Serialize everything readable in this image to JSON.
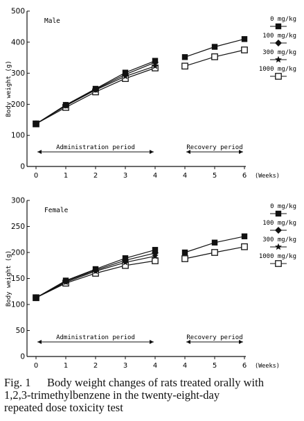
{
  "chart_data": [
    {
      "type": "line",
      "title": "Male",
      "ylabel": "Body weight (g)",
      "xlabel": "(Weeks)",
      "ylim": [
        0,
        500
      ],
      "yticks": [
        0,
        100,
        200,
        300,
        400,
        500
      ],
      "admin_x": [
        0,
        1,
        2,
        3,
        4
      ],
      "recovery_x": [
        4,
        5,
        6
      ],
      "xtick_labels_admin": [
        "0",
        "1",
        "2",
        "3",
        "4"
      ],
      "xtick_labels_recovery": [
        "4",
        "5",
        "6"
      ],
      "periods": {
        "administration": "Administration period",
        "recovery": "Recovery period"
      },
      "legend_position": "right",
      "series": [
        {
          "name": "0 mg/kg",
          "marker": "square-filled",
          "admin": [
            137,
            198,
            250,
            302,
            340
          ],
          "recovery": [
            352,
            385,
            410
          ]
        },
        {
          "name": "100 mg/kg",
          "marker": "diamond-filled",
          "admin": [
            137,
            197,
            248,
            296,
            335
          ],
          "recovery": []
        },
        {
          "name": "300 mg/kg",
          "marker": "star-filled",
          "admin": [
            137,
            195,
            246,
            290,
            323
          ],
          "recovery": []
        },
        {
          "name": "1000 mg/kg",
          "marker": "square-open",
          "admin": [
            137,
            190,
            240,
            283,
            317
          ],
          "recovery": [
            323,
            353,
            375
          ]
        }
      ]
    },
    {
      "type": "line",
      "title": "Female",
      "ylabel": "Body weight (g)",
      "xlabel": "(Weeks)",
      "ylim": [
        0,
        300
      ],
      "yticks": [
        0,
        50,
        100,
        150,
        200,
        250,
        300
      ],
      "admin_x": [
        0,
        1,
        2,
        3,
        4
      ],
      "recovery_x": [
        4,
        5,
        6
      ],
      "xtick_labels_admin": [
        "0",
        "1",
        "2",
        "3",
        "4"
      ],
      "xtick_labels_recovery": [
        "4",
        "5",
        "6"
      ],
      "periods": {
        "administration": "Administration period",
        "recovery": "Recovery period"
      },
      "legend_position": "right",
      "series": [
        {
          "name": "0 mg/kg",
          "marker": "square-filled",
          "admin": [
            113,
            146,
            168,
            189,
            205
          ],
          "recovery": [
            200,
            219,
            231
          ]
        },
        {
          "name": "100 mg/kg",
          "marker": "diamond-filled",
          "admin": [
            113,
            145,
            166,
            185,
            199
          ],
          "recovery": []
        },
        {
          "name": "300 mg/kg",
          "marker": "star-filled",
          "admin": [
            113,
            143,
            164,
            181,
            193
          ],
          "recovery": []
        },
        {
          "name": "1000 mg/kg",
          "marker": "square-open",
          "admin": [
            113,
            141,
            160,
            175,
            184
          ],
          "recovery": [
            188,
            200,
            211
          ]
        }
      ]
    }
  ],
  "caption": {
    "label": "Fig. 1",
    "lines": [
      "Body weight changes of rats treated orally with",
      "1,2,3-trimethylbenzene in the twenty-eight-day",
      "repeated dose toxicity test"
    ]
  }
}
